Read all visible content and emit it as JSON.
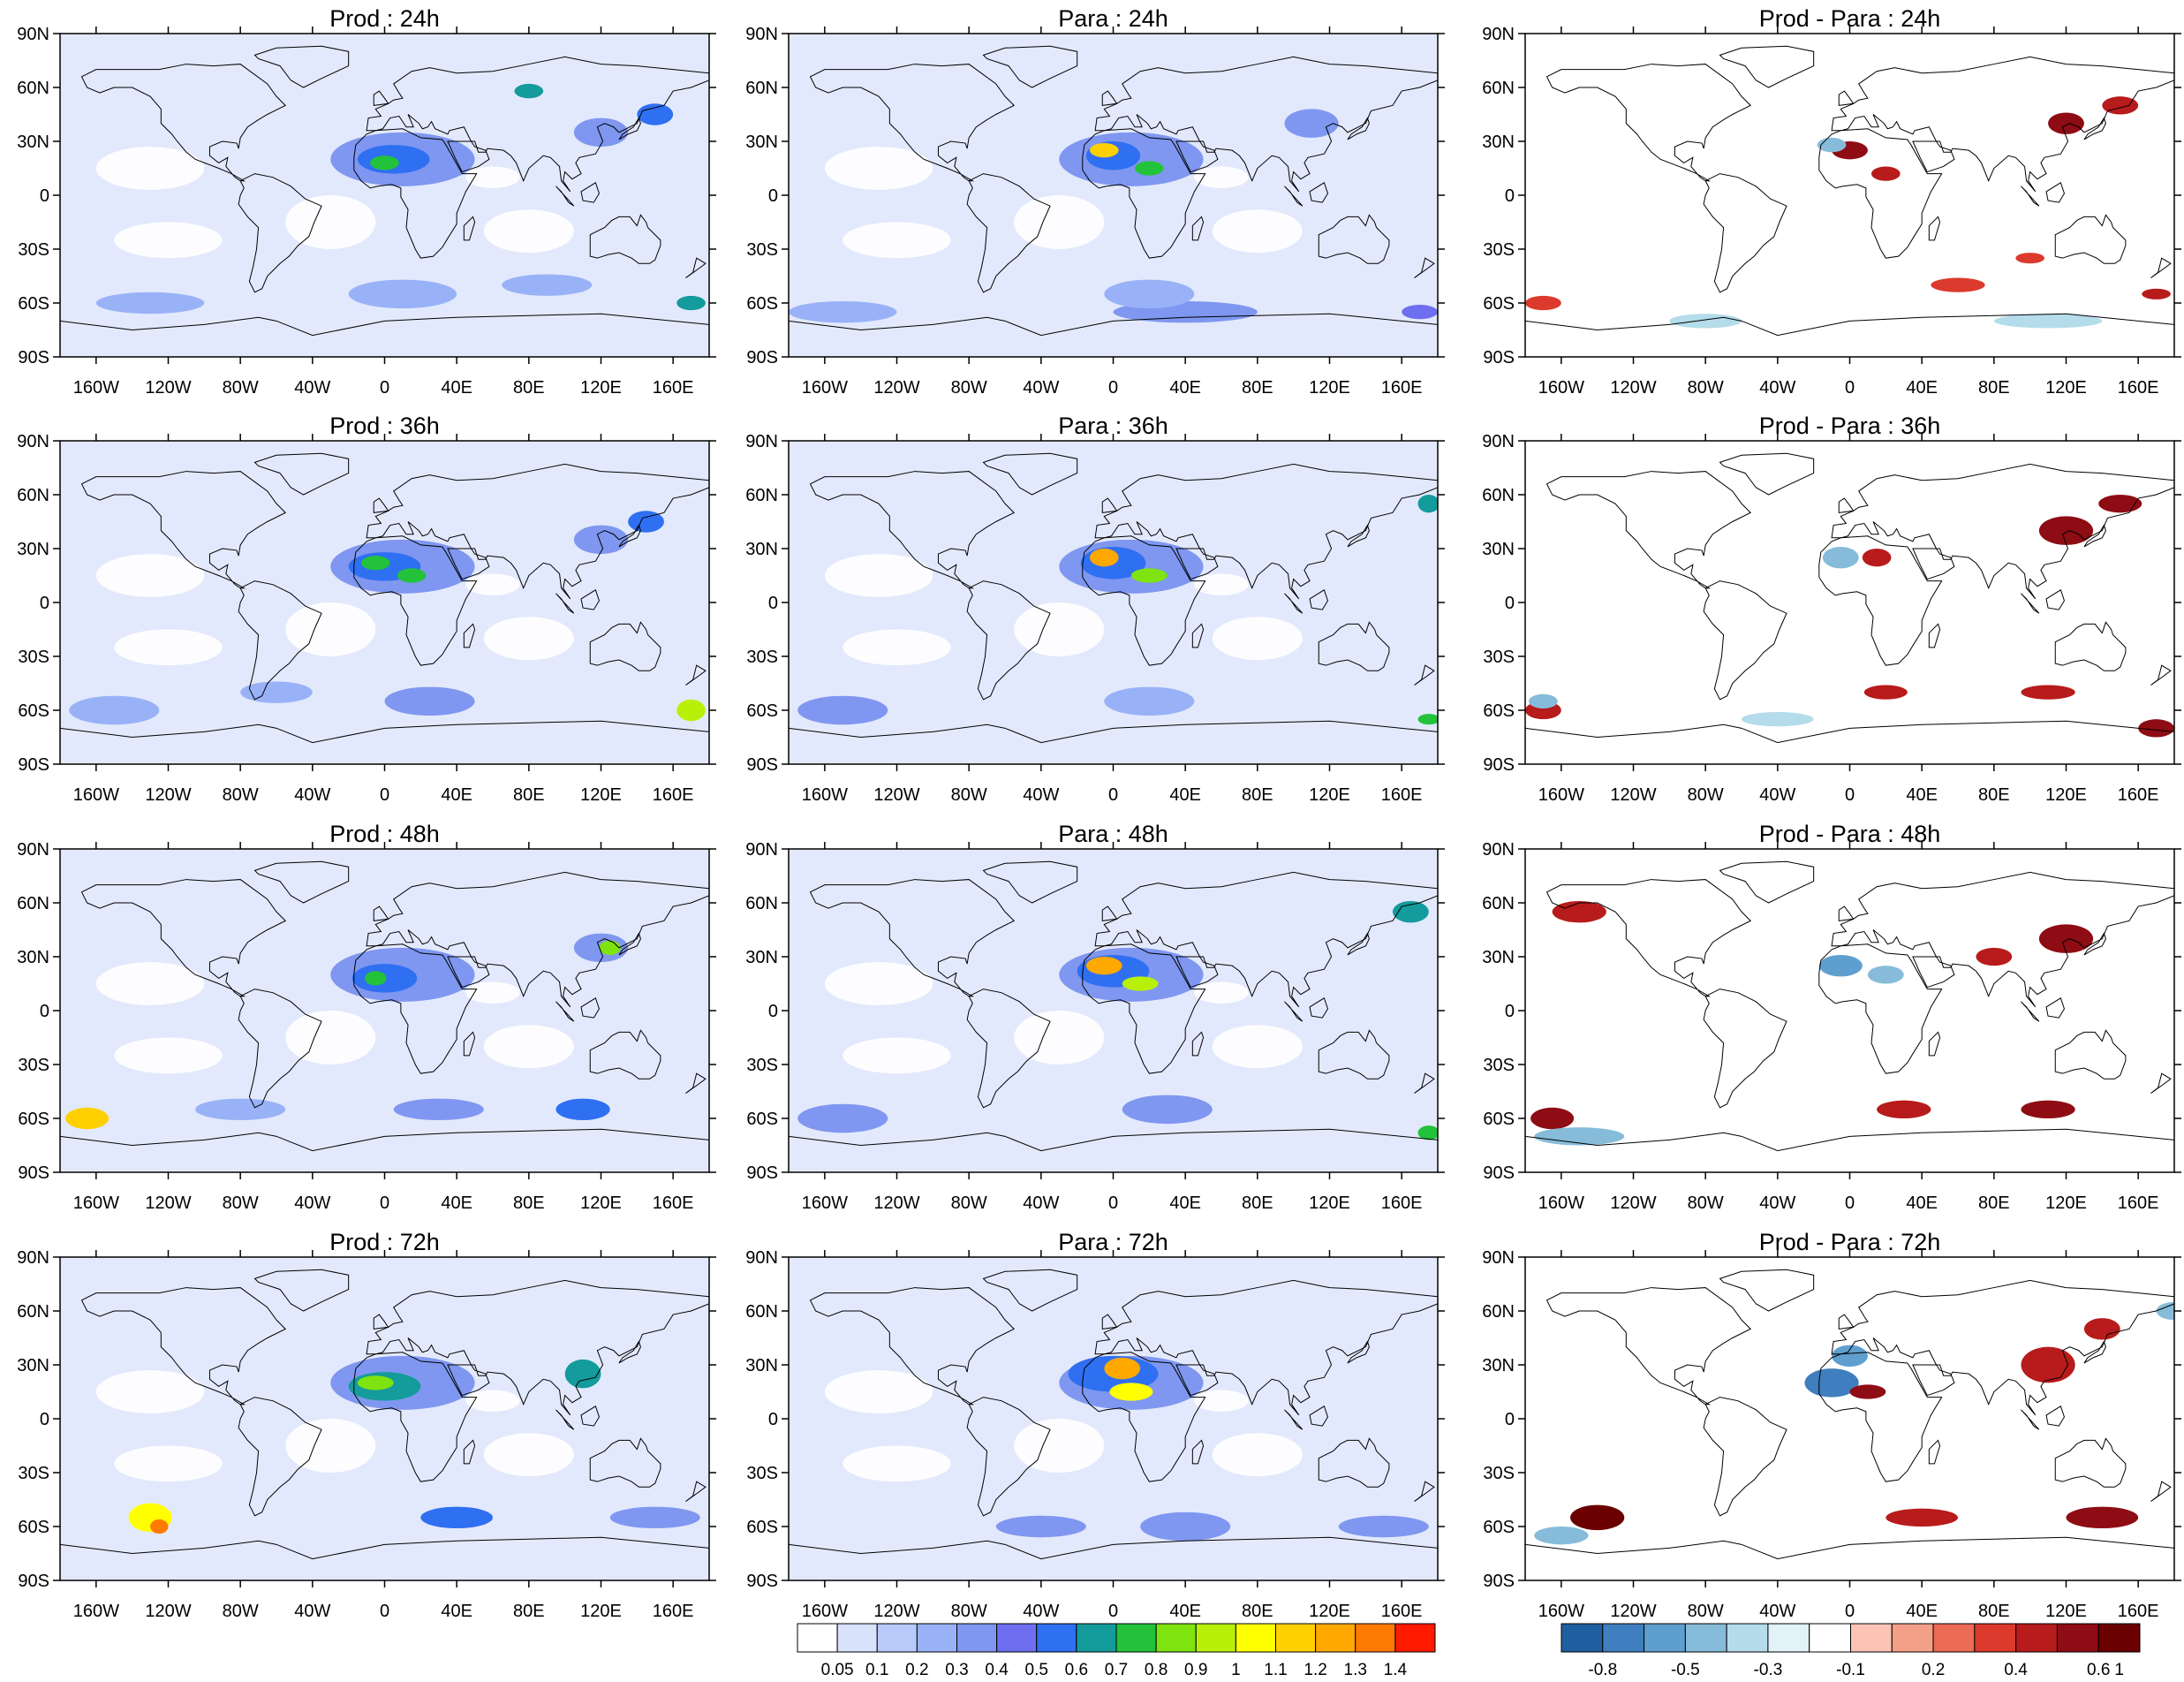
{
  "rows": [
    "24h",
    "36h",
    "48h",
    "72h"
  ],
  "columns": [
    {
      "label_prefix": "Prod",
      "kind": "field"
    },
    {
      "label_prefix": "Para",
      "kind": "field"
    },
    {
      "label_prefix": "Prod - Para",
      "kind": "diff"
    }
  ],
  "titles": [
    [
      "Prod : 24h",
      "Para : 24h",
      "Prod - Para : 24h"
    ],
    [
      "Prod : 36h",
      "Para : 36h",
      "Prod - Para : 36h"
    ],
    [
      "Prod : 48h",
      "Para : 48h",
      "Prod - Para : 48h"
    ],
    [
      "Prod : 72h",
      "Para : 72h",
      "Prod - Para : 72h"
    ]
  ],
  "lat_labels": [
    "90N",
    "60N",
    "30N",
    "0",
    "30S",
    "60S",
    "90S"
  ],
  "lat_values": [
    90,
    60,
    30,
    0,
    -30,
    -60,
    -90
  ],
  "lon_labels": [
    "160W",
    "120W",
    "80W",
    "40W",
    "0",
    "40E",
    "80E",
    "120E",
    "160E"
  ],
  "lon_values": [
    -160,
    -120,
    -80,
    -40,
    0,
    40,
    80,
    120,
    160
  ],
  "field_colorbar": {
    "levels": [
      "0.05",
      "0.1",
      "0.2",
      "0.3",
      "0.4",
      "0.5",
      "0.6",
      "0.7",
      "0.8",
      "0.9",
      "1",
      "1.1",
      "1.2",
      "1.3",
      "1.4"
    ],
    "colors": [
      "#ffffff",
      "#d9e2fb",
      "#b8cafa",
      "#99b2f7",
      "#7f97f0",
      "#6e6ff0",
      "#2f6ff2",
      "#149b9b",
      "#22c33a",
      "#7ee30f",
      "#b9f00a",
      "#ffff00",
      "#ffd000",
      "#ffa800",
      "#ff7a00",
      "#ff1a00"
    ]
  },
  "diff_colorbar": {
    "levels": [
      "-0.8",
      "-0.5",
      "-0.3",
      "-0.1",
      "0.2",
      "0.4",
      "0.6",
      "1"
    ],
    "colors": [
      "#1f5fa0",
      "#3f7fbf",
      "#5f9fcf",
      "#86bcd9",
      "#b4dcea",
      "#e2f2f8",
      "#ffffff",
      "#fbc4b5",
      "#f49f88",
      "#ec6b55",
      "#dc3a2c",
      "#b81b1b",
      "#8e0c13",
      "#6a0000"
    ]
  },
  "background_color": "#ffffff",
  "map_fill_light": "#e3e9fc"
}
